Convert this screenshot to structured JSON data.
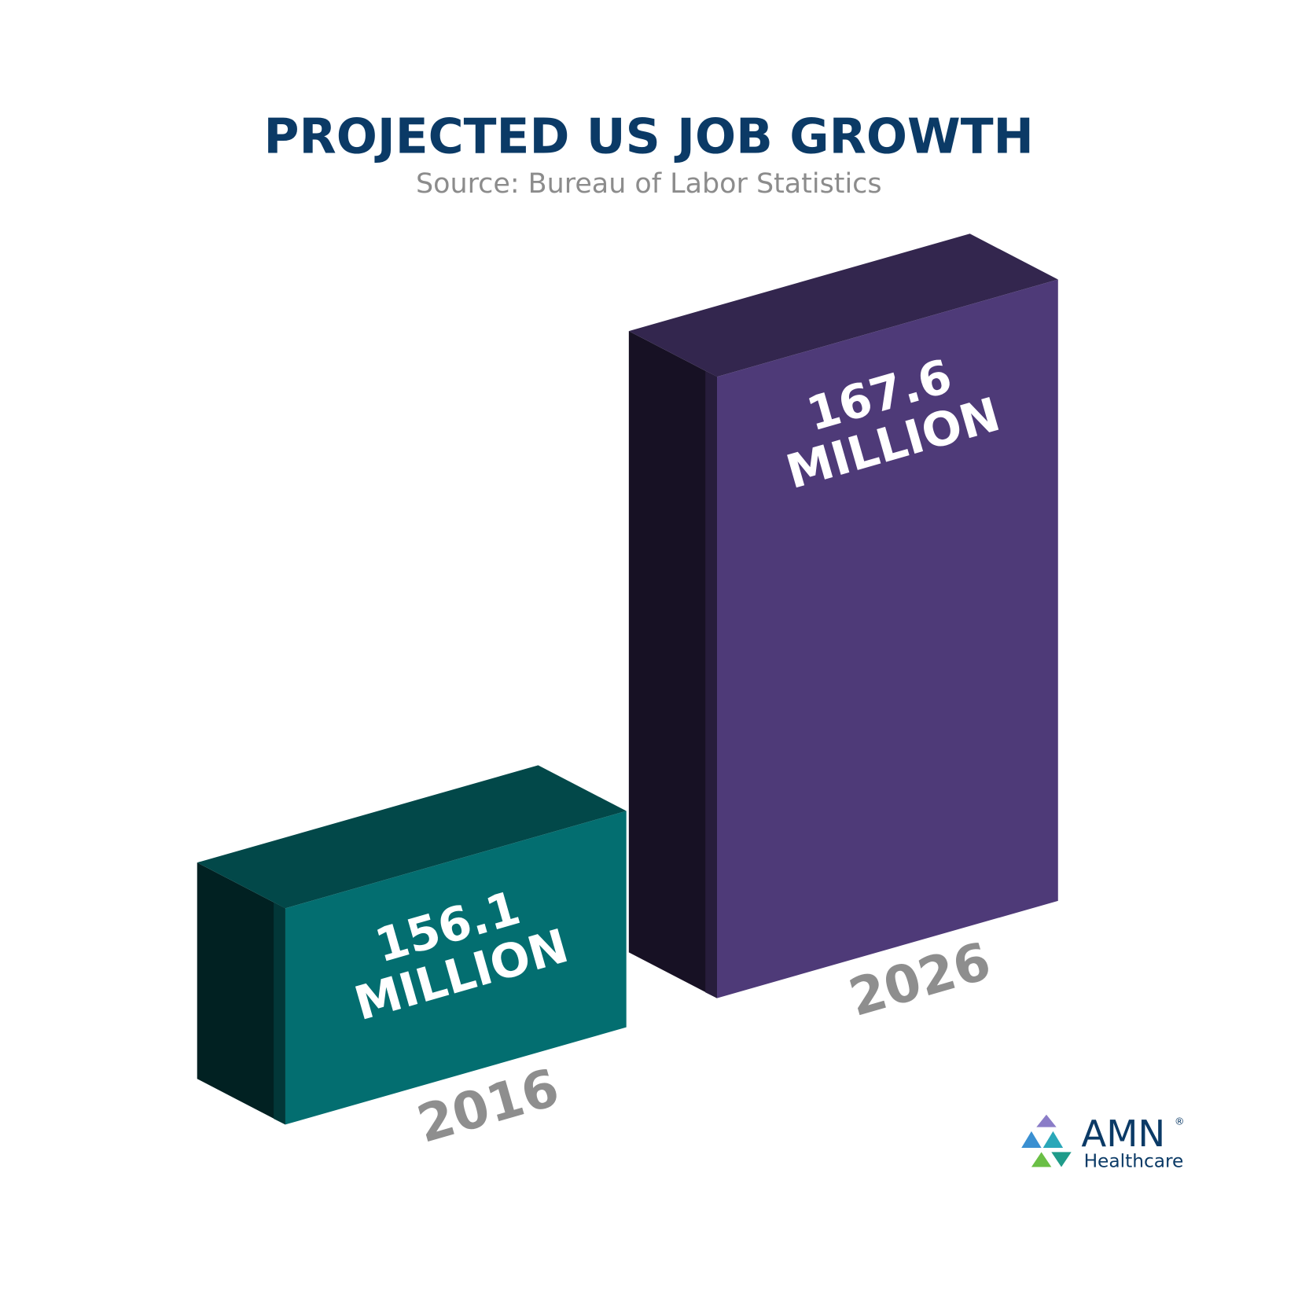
{
  "chart_data": {
    "type": "bar3d",
    "title": "PROJECTED US JOB GROWTH",
    "subtitle": "Source: Bureau of Labor Statistics",
    "categories": [
      "2016",
      "2026"
    ],
    "values": [
      156.1,
      167.6
    ],
    "value_labels": [
      "156.1 MILLION",
      "167.6 MILLION"
    ],
    "colors": [
      "#036e70",
      "#4e3a78"
    ]
  },
  "logo": {
    "name": "AMN",
    "mark": "®",
    "subtitle": "Healthcare"
  }
}
